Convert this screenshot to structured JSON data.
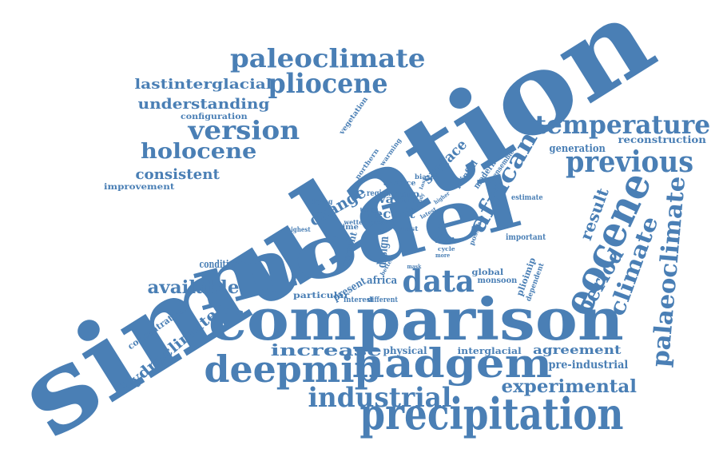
{
  "color": "#4a7fb5",
  "words": [
    "simulation",
    "model",
    "comparison",
    "precipitation",
    "hadgem",
    "deepmip",
    "data",
    "eocene",
    "previous",
    "temperature",
    "paleoclimate",
    "pliocene",
    "version",
    "holocene",
    "african",
    "palaeoclimate",
    "industrial",
    "experimental",
    "climate",
    "period",
    "result",
    "available",
    "increase",
    "agreement",
    "consistent",
    "understanding",
    "lastinterglacial",
    "change",
    "recent",
    "warm",
    "surface",
    "hydroclimate",
    "pre-industrial",
    "generation",
    "reconstruction",
    "design",
    "condition",
    "interglacial",
    "physical",
    "concentration",
    "improvement",
    "configuration",
    "vegetation",
    "africa",
    "pmip",
    "particular",
    "interest",
    "different",
    "present",
    "current",
    "global",
    "monsoon",
    "plioimip",
    "dependent",
    "important",
    "estimate",
    "possible",
    "modern",
    "ensemble",
    "rainfall",
    "northern",
    "warming",
    "auspice",
    "biases",
    "region",
    "drying",
    "today",
    "highest",
    "time",
    "wetter",
    "clear",
    "most",
    "latest",
    "higher",
    "earth",
    "level",
    "cycle",
    "more",
    "mask",
    "better",
    "study",
    "last",
    "use"
  ]
}
